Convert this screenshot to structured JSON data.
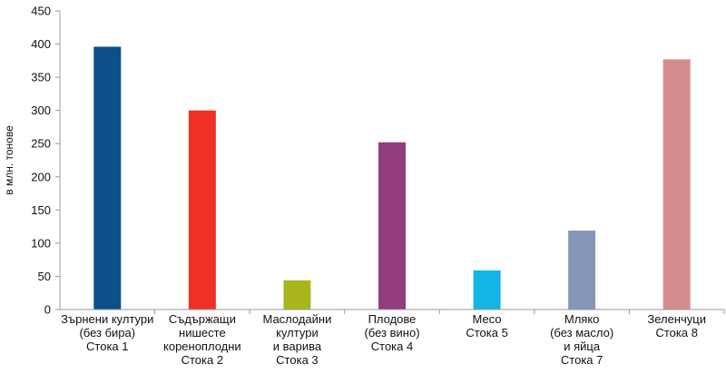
{
  "chart_data": {
    "type": "bar",
    "categories": [
      [
        "Зърнени култури",
        "(без бира)",
        "Стока 1"
      ],
      [
        "Съдържащи",
        "нишесте",
        "кореноплодни",
        "Стока 2"
      ],
      [
        "Маслодайни",
        "култури",
        "и варива",
        "Стока 3"
      ],
      [
        "Плодове",
        "(без вино)",
        "Стока 4"
      ],
      [
        "Месо",
        "Стока 5"
      ],
      [
        "Мляко",
        "(без масло)",
        "и яйца",
        "Стока 7"
      ],
      [
        "Зеленчуци",
        "Стока 8"
      ]
    ],
    "values": [
      396,
      300,
      44,
      252,
      59,
      119,
      377
    ],
    "colors": [
      "#0b5089",
      "#ee3124",
      "#a8b61c",
      "#923c7d",
      "#13b5e6",
      "#8497b9",
      "#d68c8d"
    ],
    "ylabel": "в млн. тонове",
    "ylim": [
      0,
      450
    ],
    "yticks": [
      0,
      50,
      100,
      150,
      200,
      250,
      300,
      350,
      400,
      450
    ],
    "grid": false,
    "legend": "none"
  }
}
